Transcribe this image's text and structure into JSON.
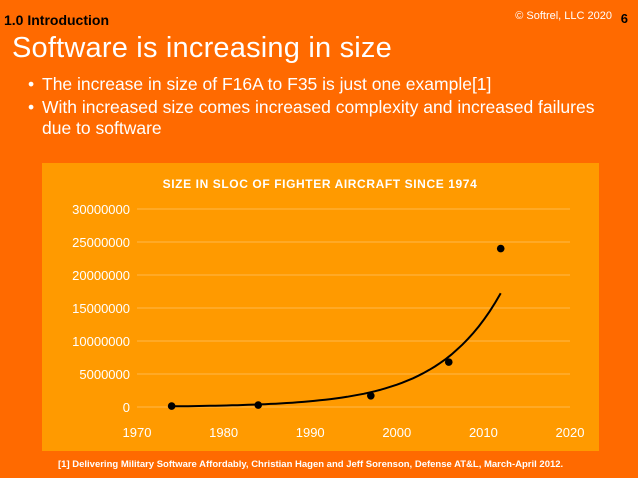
{
  "header": {
    "section": "1.0 Introduction",
    "copyright": "© Softrel, LLC 2020",
    "page_number": "6"
  },
  "slide": {
    "title": "Software is increasing in size",
    "bullets": [
      "The increase in size of F16A to F35 is just one example[1]",
      "With increased size comes increased complexity and increased failures due to software"
    ],
    "footnote": "[1] Delivering Military Software Affordably, Christian Hagen and Jeff Sorenson, Defense AT&L, March-April 2012."
  },
  "colors": {
    "background": "#ff6a00",
    "chart_panel": "#ff9a00",
    "points": "#000000",
    "trendline": "#000000",
    "grid": "#ffb84d"
  },
  "chart_data": {
    "type": "scatter",
    "title": "SIZE IN SLOC OF FIGHTER AIRCRAFT SINCE 1974",
    "xlabel": "",
    "ylabel": "",
    "xlim": [
      1970,
      2020
    ],
    "ylim": [
      0,
      30000000
    ],
    "x_ticks": [
      1970,
      1980,
      1990,
      2000,
      2010,
      2020
    ],
    "y_ticks": [
      0,
      5000000,
      10000000,
      15000000,
      20000000,
      25000000,
      30000000
    ],
    "grid": true,
    "points": [
      {
        "x": 1974,
        "y": 135000
      },
      {
        "x": 1984,
        "y": 300000
      },
      {
        "x": 1997,
        "y": 1700000
      },
      {
        "x": 2006,
        "y": 6800000
      },
      {
        "x": 2012,
        "y": 24000000
      }
    ],
    "trendline": {
      "type": "exponential",
      "x_range": [
        1974,
        2012
      ]
    }
  }
}
